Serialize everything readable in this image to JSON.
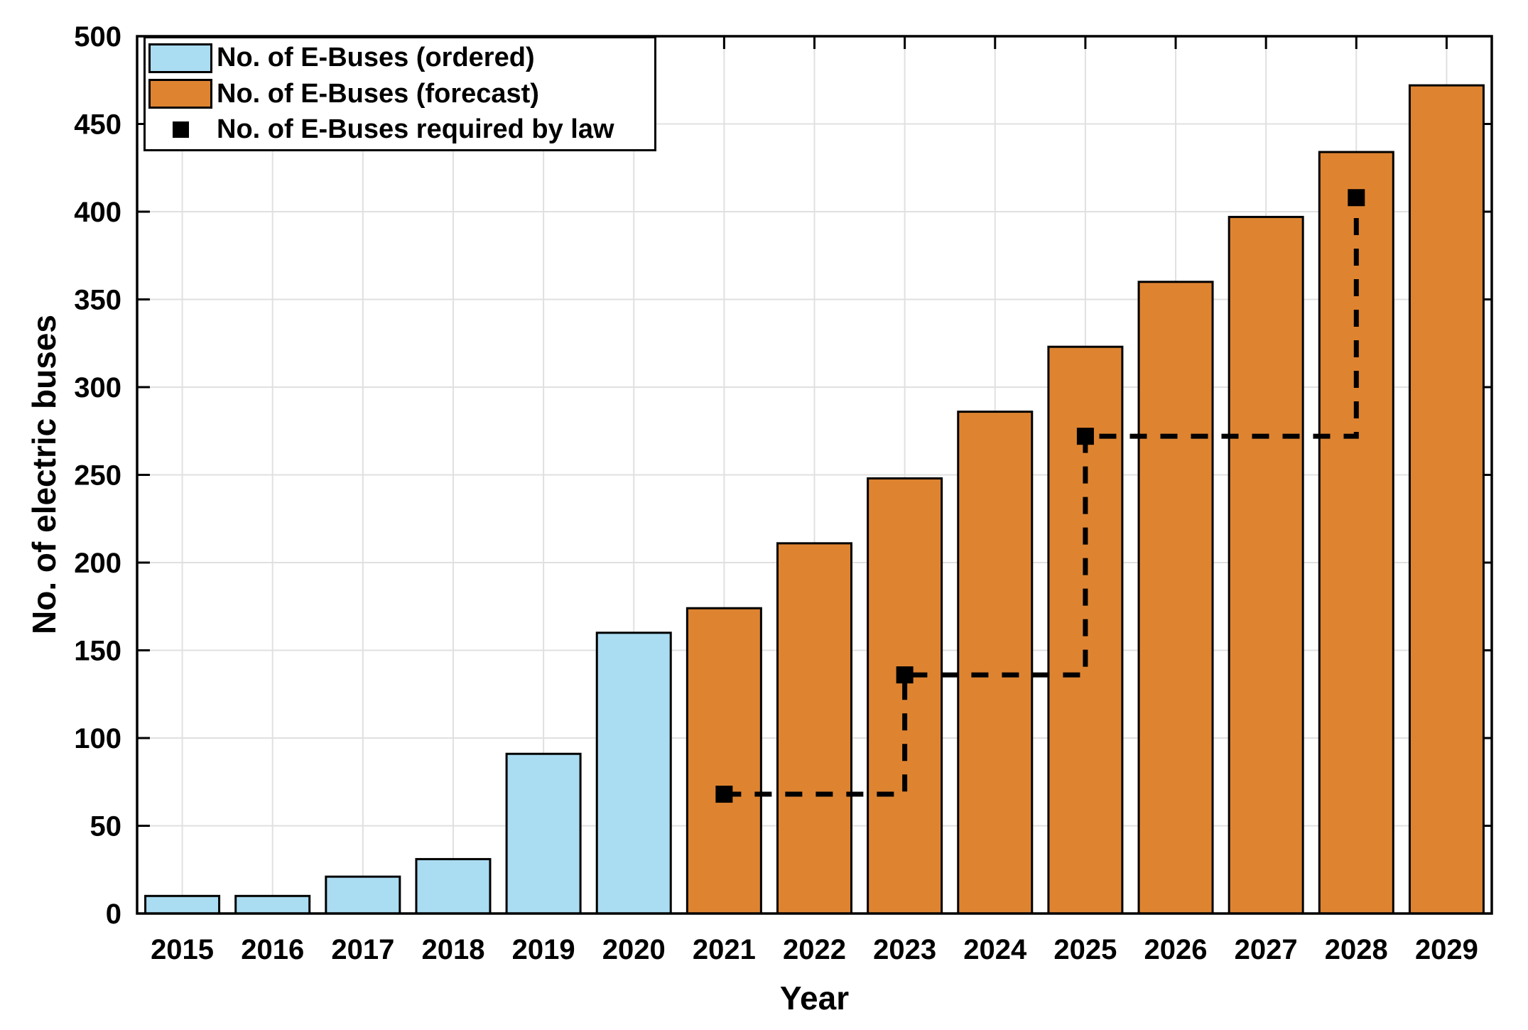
{
  "figure": {
    "background": "#FFFFFF",
    "axis_color": "#000000",
    "grid_color": "#E0E0E0",
    "text_color": "#000000"
  },
  "chart_data": {
    "type": "bar",
    "title": "",
    "xlabel": "Year",
    "ylabel": "No. of electric buses",
    "categories": [
      "2015",
      "2016",
      "2017",
      "2018",
      "2019",
      "2020",
      "2021",
      "2022",
      "2023",
      "2024",
      "2025",
      "2026",
      "2027",
      "2028",
      "2029"
    ],
    "ylim": [
      0,
      500
    ],
    "yticks": [
      0,
      50,
      100,
      150,
      200,
      250,
      300,
      350,
      400,
      450,
      500
    ],
    "grid": true,
    "legend_position": "top-left",
    "series": [
      {
        "name": "No. of E-Buses (ordered)",
        "type": "bar",
        "color": "#AADCF2",
        "edge_color": "#000000",
        "values": [
          10,
          10,
          21,
          31,
          91,
          160,
          null,
          null,
          null,
          null,
          null,
          null,
          null,
          null,
          null
        ]
      },
      {
        "name": "No. of E-Buses (forecast)",
        "type": "bar",
        "color": "#DE8431",
        "edge_color": "#000000",
        "values": [
          null,
          null,
          null,
          null,
          null,
          null,
          174,
          211,
          248,
          286,
          323,
          360,
          397,
          434,
          472
        ]
      },
      {
        "name": "No. of E-Buses required by law",
        "type": "step_line",
        "color": "#000000",
        "line_style": "dashed",
        "marker": "square",
        "points": [
          {
            "x": "2021",
            "y": 68
          },
          {
            "x": "2023",
            "y": 136
          },
          {
            "x": "2025",
            "y": 272
          },
          {
            "x": "2028",
            "y": 408
          }
        ]
      }
    ]
  }
}
